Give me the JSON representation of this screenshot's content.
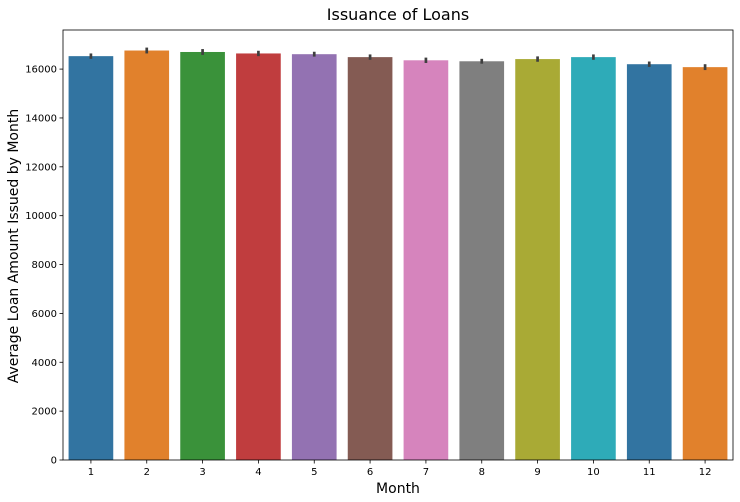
{
  "chart_data": {
    "type": "bar",
    "title": "Issuance of Loans",
    "xlabel": "Month",
    "ylabel": "Average Loan Amount Issued by Month",
    "categories": [
      "1",
      "2",
      "3",
      "4",
      "5",
      "6",
      "7",
      "8",
      "9",
      "10",
      "11",
      "12"
    ],
    "values": [
      16530,
      16760,
      16700,
      16640,
      16610,
      16490,
      16360,
      16320,
      16410,
      16490,
      16200,
      16080
    ],
    "error_low": [
      16420,
      16640,
      16580,
      16530,
      16510,
      16380,
      16250,
      16220,
      16300,
      16380,
      16090,
      15960
    ],
    "error_high": [
      16640,
      16880,
      16820,
      16750,
      16710,
      16600,
      16470,
      16420,
      16520,
      16600,
      16310,
      16200
    ],
    "colors": [
      "#3274a1",
      "#e1812c",
      "#3a923a",
      "#c03d3e",
      "#9372b2",
      "#845b53",
      "#d684bd",
      "#7f7f7f",
      "#a9aa35",
      "#2eabb8",
      "#3274a1",
      "#e1812c"
    ],
    "ylim": [
      0,
      17600
    ],
    "yticks": [
      0,
      2000,
      4000,
      6000,
      8000,
      10000,
      12000,
      14000,
      16000
    ],
    "grid": false,
    "legend": "none"
  }
}
